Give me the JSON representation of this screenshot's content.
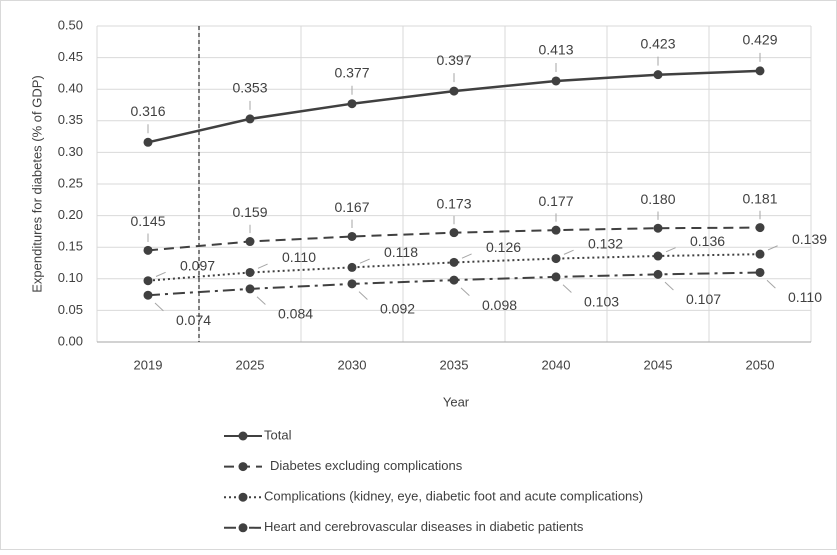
{
  "chart_data": {
    "type": "line",
    "xlabel": "Year",
    "ylabel": "Expenditures for diabetes (% of GDP)",
    "categories": [
      "2019",
      "2025",
      "2030",
      "2035",
      "2040",
      "2045",
      "2050"
    ],
    "ylim": [
      0,
      0.5
    ],
    "yticks": [
      {
        "value": 0,
        "label": "0.00"
      },
      {
        "value": 0.05,
        "label": "0.05"
      },
      {
        "value": 0.1,
        "label": "0.10"
      },
      {
        "value": 0.15,
        "label": "0.15"
      },
      {
        "value": 0.2,
        "label": "0.20"
      },
      {
        "value": 0.25,
        "label": "0.25"
      },
      {
        "value": 0.3,
        "label": "0.30"
      },
      {
        "value": 0.35,
        "label": "0.35"
      },
      {
        "value": 0.4,
        "label": "0.40"
      },
      {
        "value": 0.45,
        "label": "0.45"
      },
      {
        "value": 0.5,
        "label": "0.50"
      }
    ],
    "grid": true,
    "legend": "bottom",
    "series": [
      {
        "name": "Total",
        "color": "#404040",
        "dash": "none",
        "values": [
          0.316,
          0.353,
          0.377,
          0.397,
          0.413,
          0.423,
          0.429
        ],
        "value_labels": [
          "0.316",
          "0.353",
          "0.377",
          "0.397",
          "0.413",
          "0.423",
          "0.429"
        ]
      },
      {
        "name": "Diabetes excluding complications",
        "color": "#404040",
        "dash": "10,6",
        "values": [
          0.145,
          0.159,
          0.167,
          0.173,
          0.177,
          0.18,
          0.181
        ],
        "value_labels": [
          "0.145",
          "0.159",
          "0.167",
          "0.173",
          "0.177",
          "0.180",
          "0.181"
        ]
      },
      {
        "name": "Complications (kidney, eye, diabetic foot and acute complications)",
        "color": "#404040",
        "dash": "2,3",
        "values": [
          0.097,
          0.11,
          0.118,
          0.126,
          0.132,
          0.136,
          0.139
        ],
        "value_labels": [
          "0.097",
          "0.110",
          "0.118",
          "0.126",
          "0.132",
          "0.136",
          "0.139"
        ]
      },
      {
        "name": "Heart and cerebrovascular diseases in diabetic patients",
        "color": "#404040",
        "dash": "12,5,3,5",
        "values": [
          0.074,
          0.084,
          0.092,
          0.098,
          0.103,
          0.107,
          0.11
        ],
        "value_labels": [
          "0.074",
          "0.084",
          "0.092",
          "0.098",
          "0.103",
          "0.107",
          "0.110"
        ]
      }
    ]
  }
}
